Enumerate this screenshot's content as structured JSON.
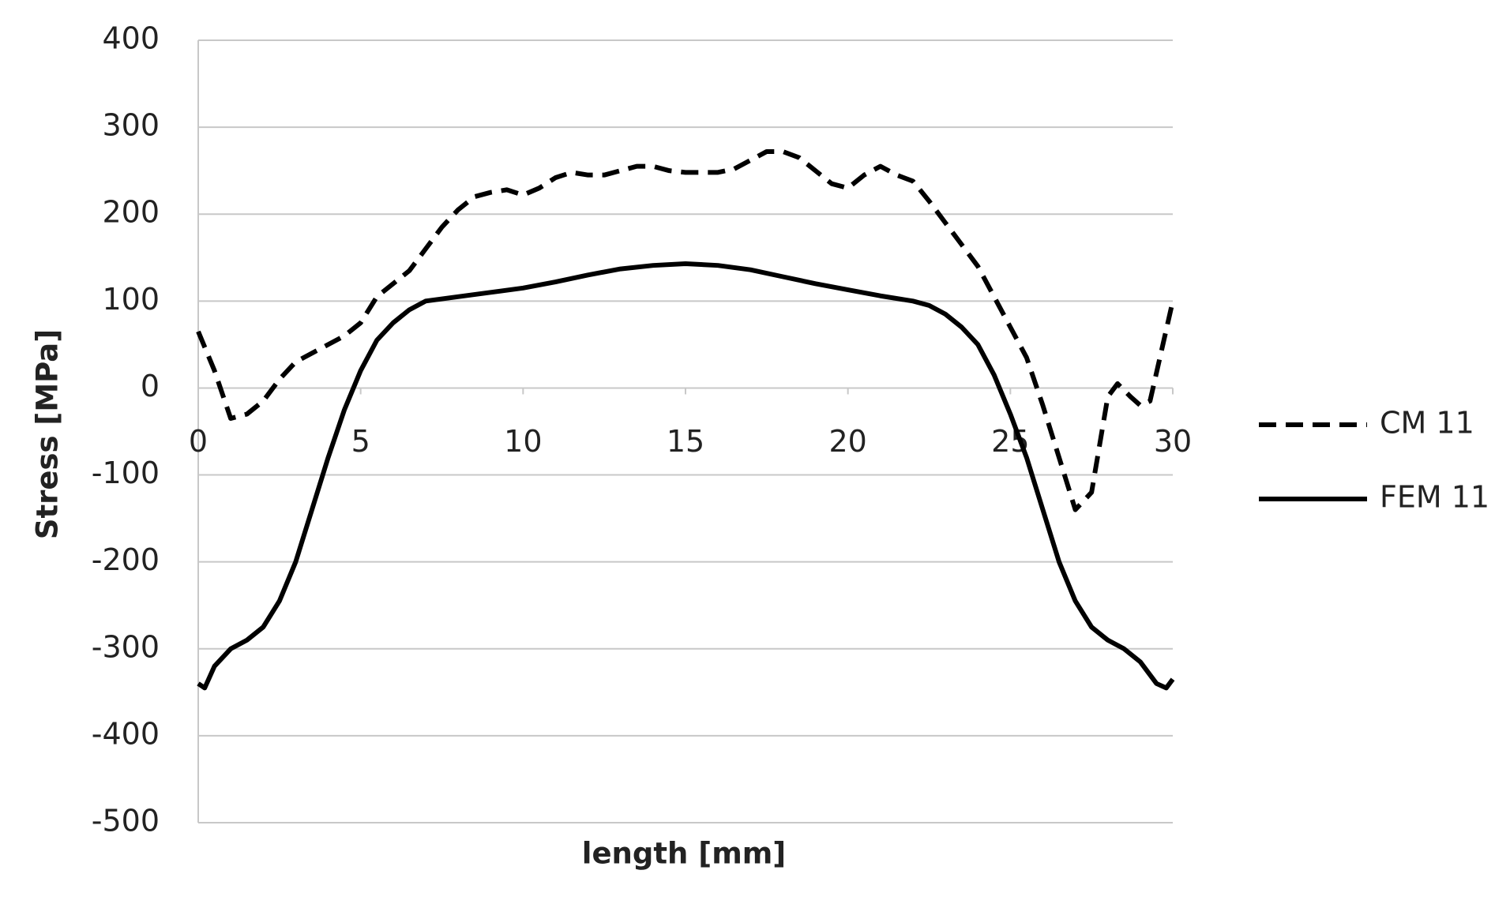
{
  "chart_data": {
    "type": "line",
    "x_label": "length [mm]",
    "y_label": "Stress [MPa]",
    "xlim": [
      0,
      30
    ],
    "xticks": [
      0,
      5,
      10,
      15,
      20,
      25,
      30
    ],
    "ylim": [
      -500,
      400
    ],
    "yticks": [
      -500,
      -400,
      -300,
      -200,
      -100,
      0,
      100,
      200,
      300,
      400
    ],
    "grid": true,
    "legend": "right",
    "series": [
      {
        "name": "CM 11",
        "color": "#000000",
        "line_style": "dashed",
        "x": [
          0,
          0.5,
          1,
          1.5,
          2,
          2.5,
          3,
          3.5,
          4,
          4.5,
          5,
          5.5,
          6,
          6.5,
          7,
          7.5,
          8,
          8.5,
          9,
          9.5,
          10,
          10.5,
          11,
          11.5,
          12,
          12.5,
          13,
          13.5,
          14,
          14.5,
          15,
          15.5,
          16,
          16.5,
          17,
          17.5,
          18,
          18.5,
          19,
          19.5,
          20,
          20.5,
          21,
          21.5,
          22,
          22.5,
          23,
          23.5,
          24,
          24.5,
          25,
          25.5,
          26,
          26.5,
          27,
          27.5,
          28,
          28.3,
          28.7,
          29,
          29.3,
          30
        ],
        "values": [
          65,
          20,
          -35,
          -30,
          -15,
          10,
          30,
          40,
          50,
          60,
          75,
          105,
          120,
          135,
          160,
          185,
          205,
          220,
          225,
          228,
          222,
          230,
          242,
          248,
          245,
          245,
          250,
          255,
          255,
          250,
          248,
          248,
          248,
          252,
          262,
          272,
          272,
          265,
          250,
          235,
          230,
          245,
          255,
          245,
          238,
          215,
          190,
          165,
          140,
          105,
          70,
          35,
          -20,
          -80,
          -140,
          -120,
          -10,
          5,
          -10,
          -20,
          -15,
          100
        ]
      },
      {
        "name": "FEM 11",
        "color": "#000000",
        "line_style": "solid",
        "x": [
          0,
          0.2,
          0.5,
          1,
          1.5,
          2,
          2.5,
          3,
          3.5,
          4,
          4.5,
          5,
          5.5,
          6,
          6.5,
          7,
          8,
          9,
          10,
          11,
          12,
          13,
          14,
          15,
          16,
          17,
          18,
          19,
          20,
          21,
          22,
          22.5,
          23,
          23.5,
          24,
          24.5,
          25,
          25.5,
          26,
          26.5,
          27,
          27.5,
          28,
          28.5,
          29,
          29.5,
          29.8,
          30
        ],
        "values": [
          -340,
          -345,
          -320,
          -300,
          -290,
          -275,
          -245,
          -200,
          -140,
          -80,
          -25,
          20,
          55,
          75,
          90,
          100,
          105,
          110,
          115,
          122,
          130,
          137,
          141,
          143,
          141,
          136,
          128,
          120,
          113,
          106,
          100,
          95,
          85,
          70,
          50,
          15,
          -30,
          -80,
          -140,
          -200,
          -245,
          -275,
          -290,
          -300,
          -315,
          -340,
          -345,
          -335
        ]
      }
    ]
  }
}
